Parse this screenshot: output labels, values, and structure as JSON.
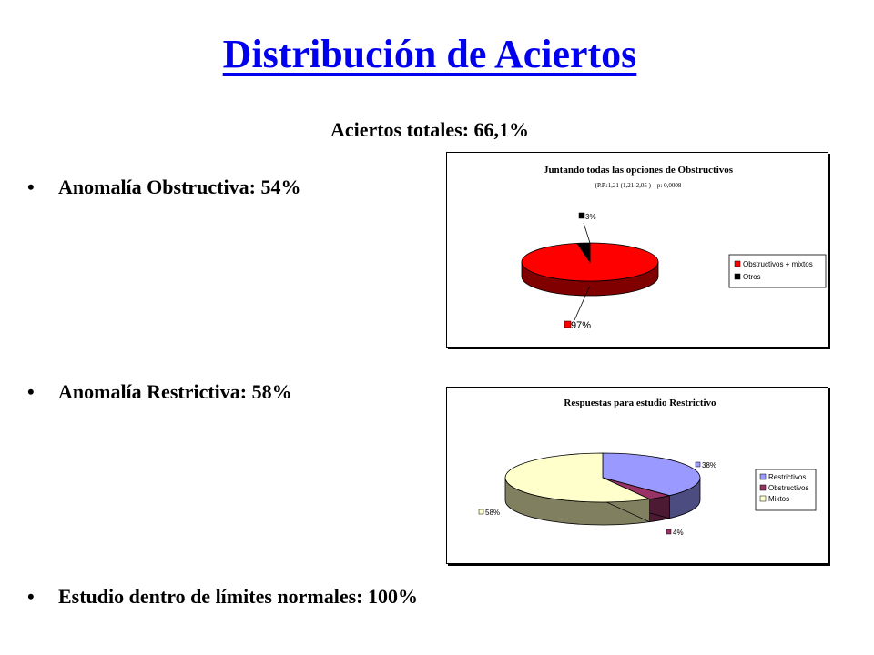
{
  "slide": {
    "title": "Distribución de Aciertos",
    "subtitle": "Aciertos totales: 66,1%",
    "bullets": [
      "Anomalía Obstructiva: 54%",
      "Anomalía Restrictiva: 58%",
      "Estudio dentro de límites normales: 100%"
    ],
    "bullet_char": "•"
  },
  "chart_data": [
    {
      "type": "pie",
      "title": "Juntando todas las opciones de Obstructivos",
      "subtitle": "(P.P.:1,21 (1,21-2,05 ) – p: 0,0008",
      "categories": [
        "Obstructivos + mixtos",
        "Otros"
      ],
      "values": [
        97,
        3
      ],
      "data_labels": [
        "97%",
        "3%"
      ],
      "colors": [
        "#ff0000",
        "#000000"
      ],
      "side_colors": [
        "#800000",
        "#000000"
      ],
      "legend": "right",
      "is3d": true
    },
    {
      "type": "pie",
      "title": "Respuestas para estudio Restrictivo",
      "categories": [
        "Restrictivos",
        "Obstructivos",
        "Mixtos"
      ],
      "values": [
        38,
        4,
        58
      ],
      "data_labels": [
        "38%",
        "4%",
        "58%"
      ],
      "colors": [
        "#9999ff",
        "#993366",
        "#ffffcc"
      ],
      "side_colors": [
        "#4c4c80",
        "#4c1a33",
        "#808060"
      ],
      "legend": "right",
      "is3d": true
    }
  ]
}
